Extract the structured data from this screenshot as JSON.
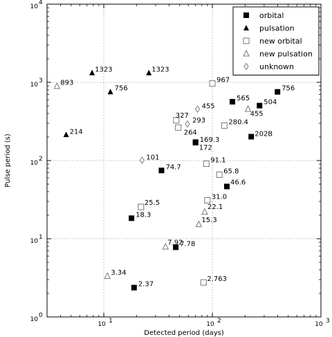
{
  "chart_data": {
    "type": "scatter",
    "title": "",
    "xlabel": "Detected period (days)",
    "ylabel": "Pulse period (s)",
    "xscale": "log",
    "yscale": "log",
    "xlim": [
      3,
      1000
    ],
    "ylim": [
      1,
      10000
    ],
    "grid": true,
    "legend_position": "top-right",
    "x_tick_labels": [
      "10",
      "10",
      "10"
    ],
    "x_tick_exponents": [
      "1",
      "2",
      "3"
    ],
    "x_tick_values": [
      10,
      100,
      1000
    ],
    "y_tick_labels": [
      "10",
      "10",
      "10",
      "10",
      "10"
    ],
    "y_tick_exponents": [
      "0",
      "1",
      "2",
      "3",
      "4"
    ],
    "y_tick_values": [
      1,
      10,
      100,
      1000,
      10000
    ],
    "series": [
      {
        "name": "orbital",
        "marker": "square-filled",
        "points": [
          {
            "x": 19.0,
            "y": 2.37,
            "label": "2.37"
          },
          {
            "x": 18.0,
            "y": 18.3,
            "label": "18.3"
          },
          {
            "x": 34.0,
            "y": 74.7,
            "label": "74.7"
          },
          {
            "x": 46.0,
            "y": 7.78,
            "label": "7.78"
          },
          {
            "x": 70.0,
            "y": 169.3,
            "label": "169.3"
          },
          {
            "x": 70.0,
            "y": 172,
            "label": "172"
          },
          {
            "x": 136.0,
            "y": 46.6,
            "label": "46.6"
          },
          {
            "x": 153.0,
            "y": 565,
            "label": "565"
          },
          {
            "x": 228.0,
            "y": 202,
            "label": "202B"
          },
          {
            "x": 272.0,
            "y": 504,
            "label": "504"
          },
          {
            "x": 398.0,
            "y": 756,
            "label": "756"
          }
        ]
      },
      {
        "name": "pulsation",
        "marker": "triangle-filled",
        "points": [
          {
            "x": 4.5,
            "y": 214,
            "label": "214"
          },
          {
            "x": 7.8,
            "y": 1323,
            "label": "1323"
          },
          {
            "x": 11.5,
            "y": 756,
            "label": "756"
          },
          {
            "x": 26.0,
            "y": 1323,
            "label": "1323"
          }
        ]
      },
      {
        "name": "new orbital",
        "marker": "square-open",
        "points": [
          {
            "x": 22.0,
            "y": 25.5,
            "label": "25.5"
          },
          {
            "x": 46.5,
            "y": 327,
            "label": "327"
          },
          {
            "x": 48.5,
            "y": 264,
            "label": "264"
          },
          {
            "x": 83.0,
            "y": 2.763,
            "label": "2.763"
          },
          {
            "x": 88.0,
            "y": 91.1,
            "label": "91.1"
          },
          {
            "x": 90.0,
            "y": 31.0,
            "label": "31.0"
          },
          {
            "x": 100.0,
            "y": 967,
            "label": "967"
          },
          {
            "x": 116.0,
            "y": 65.8,
            "label": "65.8"
          },
          {
            "x": 129.0,
            "y": 280.4,
            "label": "280.4"
          }
        ]
      },
      {
        "name": "new pulsation",
        "marker": "triangle-open",
        "points": [
          {
            "x": 3.7,
            "y": 893,
            "label": "893"
          },
          {
            "x": 10.8,
            "y": 3.34,
            "label": "3.34"
          },
          {
            "x": 37.0,
            "y": 7.92,
            "label": "7.92"
          },
          {
            "x": 75.0,
            "y": 15.3,
            "label": "15.3"
          },
          {
            "x": 85.0,
            "y": 22.1,
            "label": "22.1"
          },
          {
            "x": 213.0,
            "y": 455,
            "label": "455"
          }
        ]
      },
      {
        "name": "unknown",
        "marker": "diamond-open",
        "points": [
          {
            "x": 22.5,
            "y": 101,
            "label": "101"
          },
          {
            "x": 59.0,
            "y": 293,
            "label": "293"
          },
          {
            "x": 73.0,
            "y": 455,
            "label": "455"
          }
        ]
      }
    ]
  }
}
